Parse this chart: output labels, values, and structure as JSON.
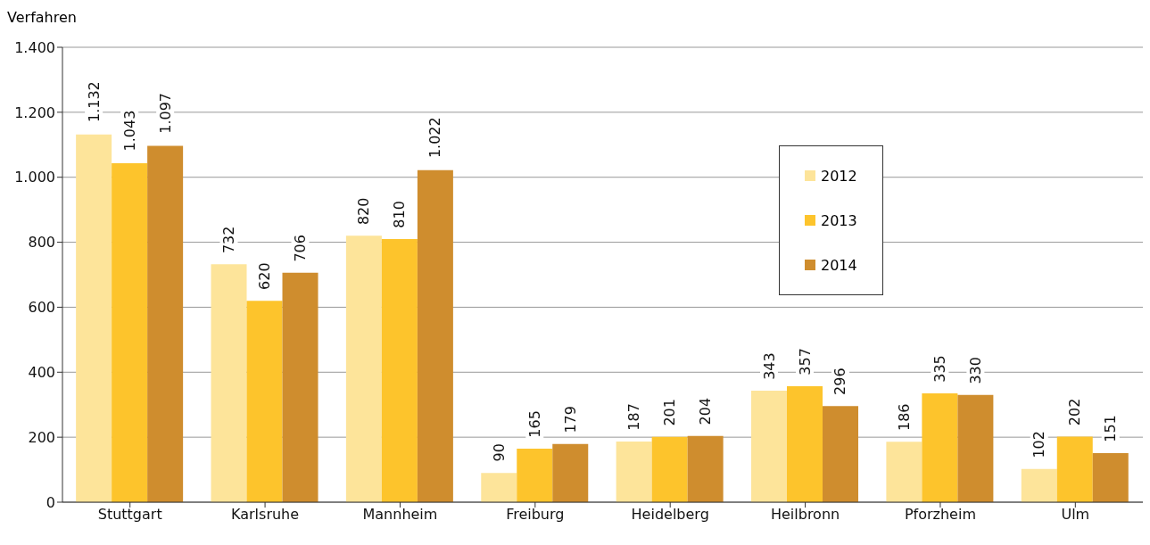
{
  "chart_data": {
    "type": "bar",
    "ylabel": "Verfahren",
    "categories": [
      "Stuttgart",
      "Karlsruhe",
      "Mannheim",
      "Freiburg",
      "Heidelberg",
      "Heilbronn",
      "Pforzheim",
      "Ulm"
    ],
    "series": [
      {
        "name": "2012",
        "color": "#fde49a",
        "values": [
          1132,
          732,
          820,
          90,
          187,
          343,
          186,
          102
        ],
        "value_labels": [
          "1.132",
          "732",
          "820",
          "90",
          "187",
          "343",
          "186",
          "102"
        ]
      },
      {
        "name": "2013",
        "color": "#fdc42c",
        "values": [
          1043,
          620,
          810,
          165,
          201,
          357,
          335,
          202
        ],
        "value_labels": [
          "1.043",
          "620",
          "810",
          "165",
          "201",
          "357",
          "335",
          "202"
        ]
      },
      {
        "name": "2014",
        "color": "#cf8d2e",
        "values": [
          1097,
          706,
          1022,
          179,
          204,
          296,
          330,
          151
        ],
        "value_labels": [
          "1.097",
          "706",
          "1.022",
          "179",
          "204",
          "296",
          "330",
          "151"
        ]
      }
    ],
    "ylim": [
      0,
      1400
    ],
    "yticks": [
      0,
      200,
      400,
      600,
      800,
      {
        "value": 1000,
        "label": "1.000"
      },
      {
        "value": 1200,
        "label": "1.200"
      },
      {
        "value": 1400,
        "label": "1.400"
      }
    ],
    "grid": "y",
    "legend": "top right"
  }
}
